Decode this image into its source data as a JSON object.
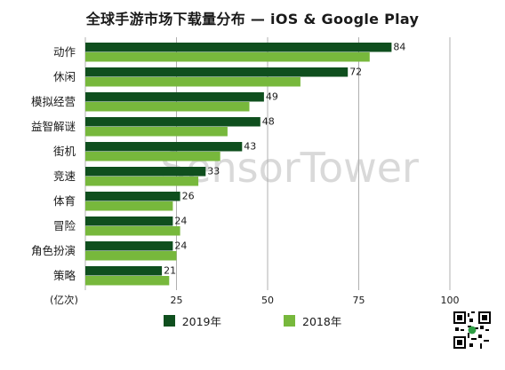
{
  "title": "全球手游市场下载量分布 — iOS & Google Play",
  "watermark": "SensorTower",
  "legend": {
    "series_2019": "2019年",
    "series_2018": "2018年"
  },
  "colors": {
    "series_2019": "#0f4f1e",
    "series_2018": "#77b83c",
    "grid": "#b0b0b0"
  },
  "chart_data": {
    "type": "bar",
    "orientation": "horizontal",
    "title": "全球手游市场下载量分布 — iOS & Google Play",
    "categories": [
      "动作",
      "休闲",
      "模拟经营",
      "益智解谜",
      "街机",
      "竞速",
      "体育",
      "冒险",
      "角色扮演",
      "策略"
    ],
    "series": [
      {
        "name": "2019年",
        "values": [
          84,
          72,
          49,
          48,
          43,
          33,
          26,
          24,
          24,
          21
        ],
        "labels": [
          "84",
          "72",
          "49",
          "48",
          "43",
          "33",
          "26",
          "24",
          "24",
          "21"
        ]
      },
      {
        "name": "2018年",
        "values": [
          78,
          59,
          45,
          39,
          37,
          31,
          24,
          26,
          25,
          23
        ]
      }
    ],
    "x_unit": "(亿次)",
    "xlim": [
      0,
      100
    ],
    "x_ticks": [
      0,
      25,
      50,
      75,
      100
    ],
    "x_tick_labels": [
      "",
      "25",
      "50",
      "75",
      "100"
    ],
    "grid": true,
    "legend_position": "bottom"
  }
}
